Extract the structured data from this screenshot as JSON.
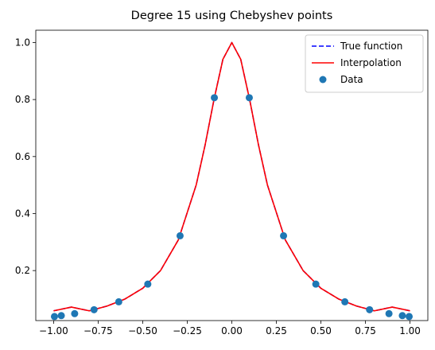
{
  "chart_data": {
    "type": "line",
    "title": "Degree 15 using Chebyshev points",
    "xlabel": "",
    "ylabel": "",
    "xlim": [
      -1.1,
      1.1
    ],
    "ylim": [
      0.0246,
      1.0432
    ],
    "x_ticks": [
      -1.0,
      -0.75,
      -0.5,
      -0.25,
      0.0,
      0.25,
      0.5,
      0.75,
      1.0
    ],
    "x_tick_labels": [
      "−1.00",
      "−0.75",
      "−0.50",
      "−0.25",
      "0.00",
      "0.25",
      "0.50",
      "0.75",
      "1.00"
    ],
    "y_ticks": [
      0.2,
      0.4,
      0.6,
      0.8,
      1.0
    ],
    "y_tick_labels": [
      "0.2",
      "0.4",
      "0.6",
      "0.8",
      "1.0"
    ],
    "grid": false,
    "legend_position": "top-right",
    "series": [
      {
        "name": "True function",
        "style": "dashed",
        "color": "#0000ff",
        "x": [
          -1.0,
          -0.9,
          -0.8,
          -0.7,
          -0.6,
          -0.5,
          -0.4,
          -0.3,
          -0.2,
          -0.15,
          -0.1,
          -0.05,
          0.0,
          0.05,
          0.1,
          0.15,
          0.2,
          0.3,
          0.4,
          0.5,
          0.6,
          0.7,
          0.8,
          0.9,
          1.0
        ],
        "y": [
          0.0588,
          0.0719,
          0.0588,
          0.0755,
          0.1,
          0.1379,
          0.2,
          0.3077,
          0.5,
          0.64,
          0.8,
          0.9412,
          1.0,
          0.9412,
          0.8,
          0.64,
          0.5,
          0.3077,
          0.2,
          0.1379,
          0.1,
          0.0755,
          0.0588,
          0.0719,
          0.0588
        ]
      },
      {
        "name": "Interpolation",
        "style": "solid",
        "color": "#ff0000",
        "x": [
          -1.0,
          -0.9,
          -0.8,
          -0.7,
          -0.6,
          -0.5,
          -0.4,
          -0.3,
          -0.2,
          -0.15,
          -0.1,
          -0.05,
          0.0,
          0.05,
          0.1,
          0.15,
          0.2,
          0.3,
          0.4,
          0.5,
          0.6,
          0.7,
          0.8,
          0.9,
          1.0
        ],
        "y": [
          0.0588,
          0.0719,
          0.0588,
          0.0755,
          0.1,
          0.1379,
          0.2,
          0.3077,
          0.5,
          0.64,
          0.8,
          0.9412,
          1.0,
          0.9412,
          0.8,
          0.64,
          0.5,
          0.3077,
          0.2,
          0.1379,
          0.1,
          0.0755,
          0.0588,
          0.0719,
          0.0588
        ]
      },
      {
        "name": "Data",
        "style": "markers",
        "color": "#1f77b4",
        "x": [
          -0.9952,
          -0.9569,
          -0.8819,
          -0.773,
          -0.6344,
          -0.4714,
          -0.2903,
          -0.098,
          0.098,
          0.2903,
          0.4714,
          0.6344,
          0.773,
          0.8819,
          0.9569,
          0.9952
        ],
        "y": [
          0.0388,
          0.0419,
          0.0489,
          0.0627,
          0.0904,
          0.1526,
          0.322,
          0.8064,
          0.8064,
          0.322,
          0.1526,
          0.0904,
          0.0627,
          0.0489,
          0.0419,
          0.0388
        ]
      }
    ]
  }
}
